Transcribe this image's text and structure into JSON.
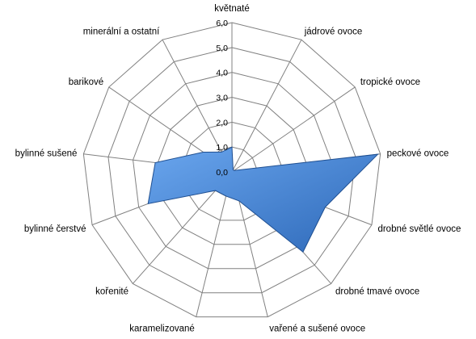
{
  "chart_data": {
    "type": "radar",
    "title": "",
    "categories": [
      "květnaté",
      "jádrové ovoce",
      "tropické ovoce",
      "peckové ovoce",
      "drobné světlé ovoce",
      "drobné tmavé ovoce",
      "vařené a sušené ovoce",
      "karamelizované",
      "kořenité",
      "bylinné čerstvé",
      "bylinné sušené",
      "barikové",
      "minerální a ostatní"
    ],
    "ticks": [
      "0,0",
      "1,0",
      "2,0",
      "3,0",
      "4,0",
      "5,0",
      "6,0"
    ],
    "tick_values": [
      0,
      1,
      2,
      3,
      4,
      5,
      6
    ],
    "rmax": 6,
    "grid": true,
    "legend": "none",
    "series": [
      {
        "values": [
          1.0,
          0.1,
          0.1,
          5.9,
          4.0,
          4.3,
          1.2,
          1.0,
          1.0,
          3.6,
          3.1,
          1.4,
          0.9
        ],
        "color": "#3d7fd6",
        "stroke": "#1f4f91"
      }
    ]
  }
}
